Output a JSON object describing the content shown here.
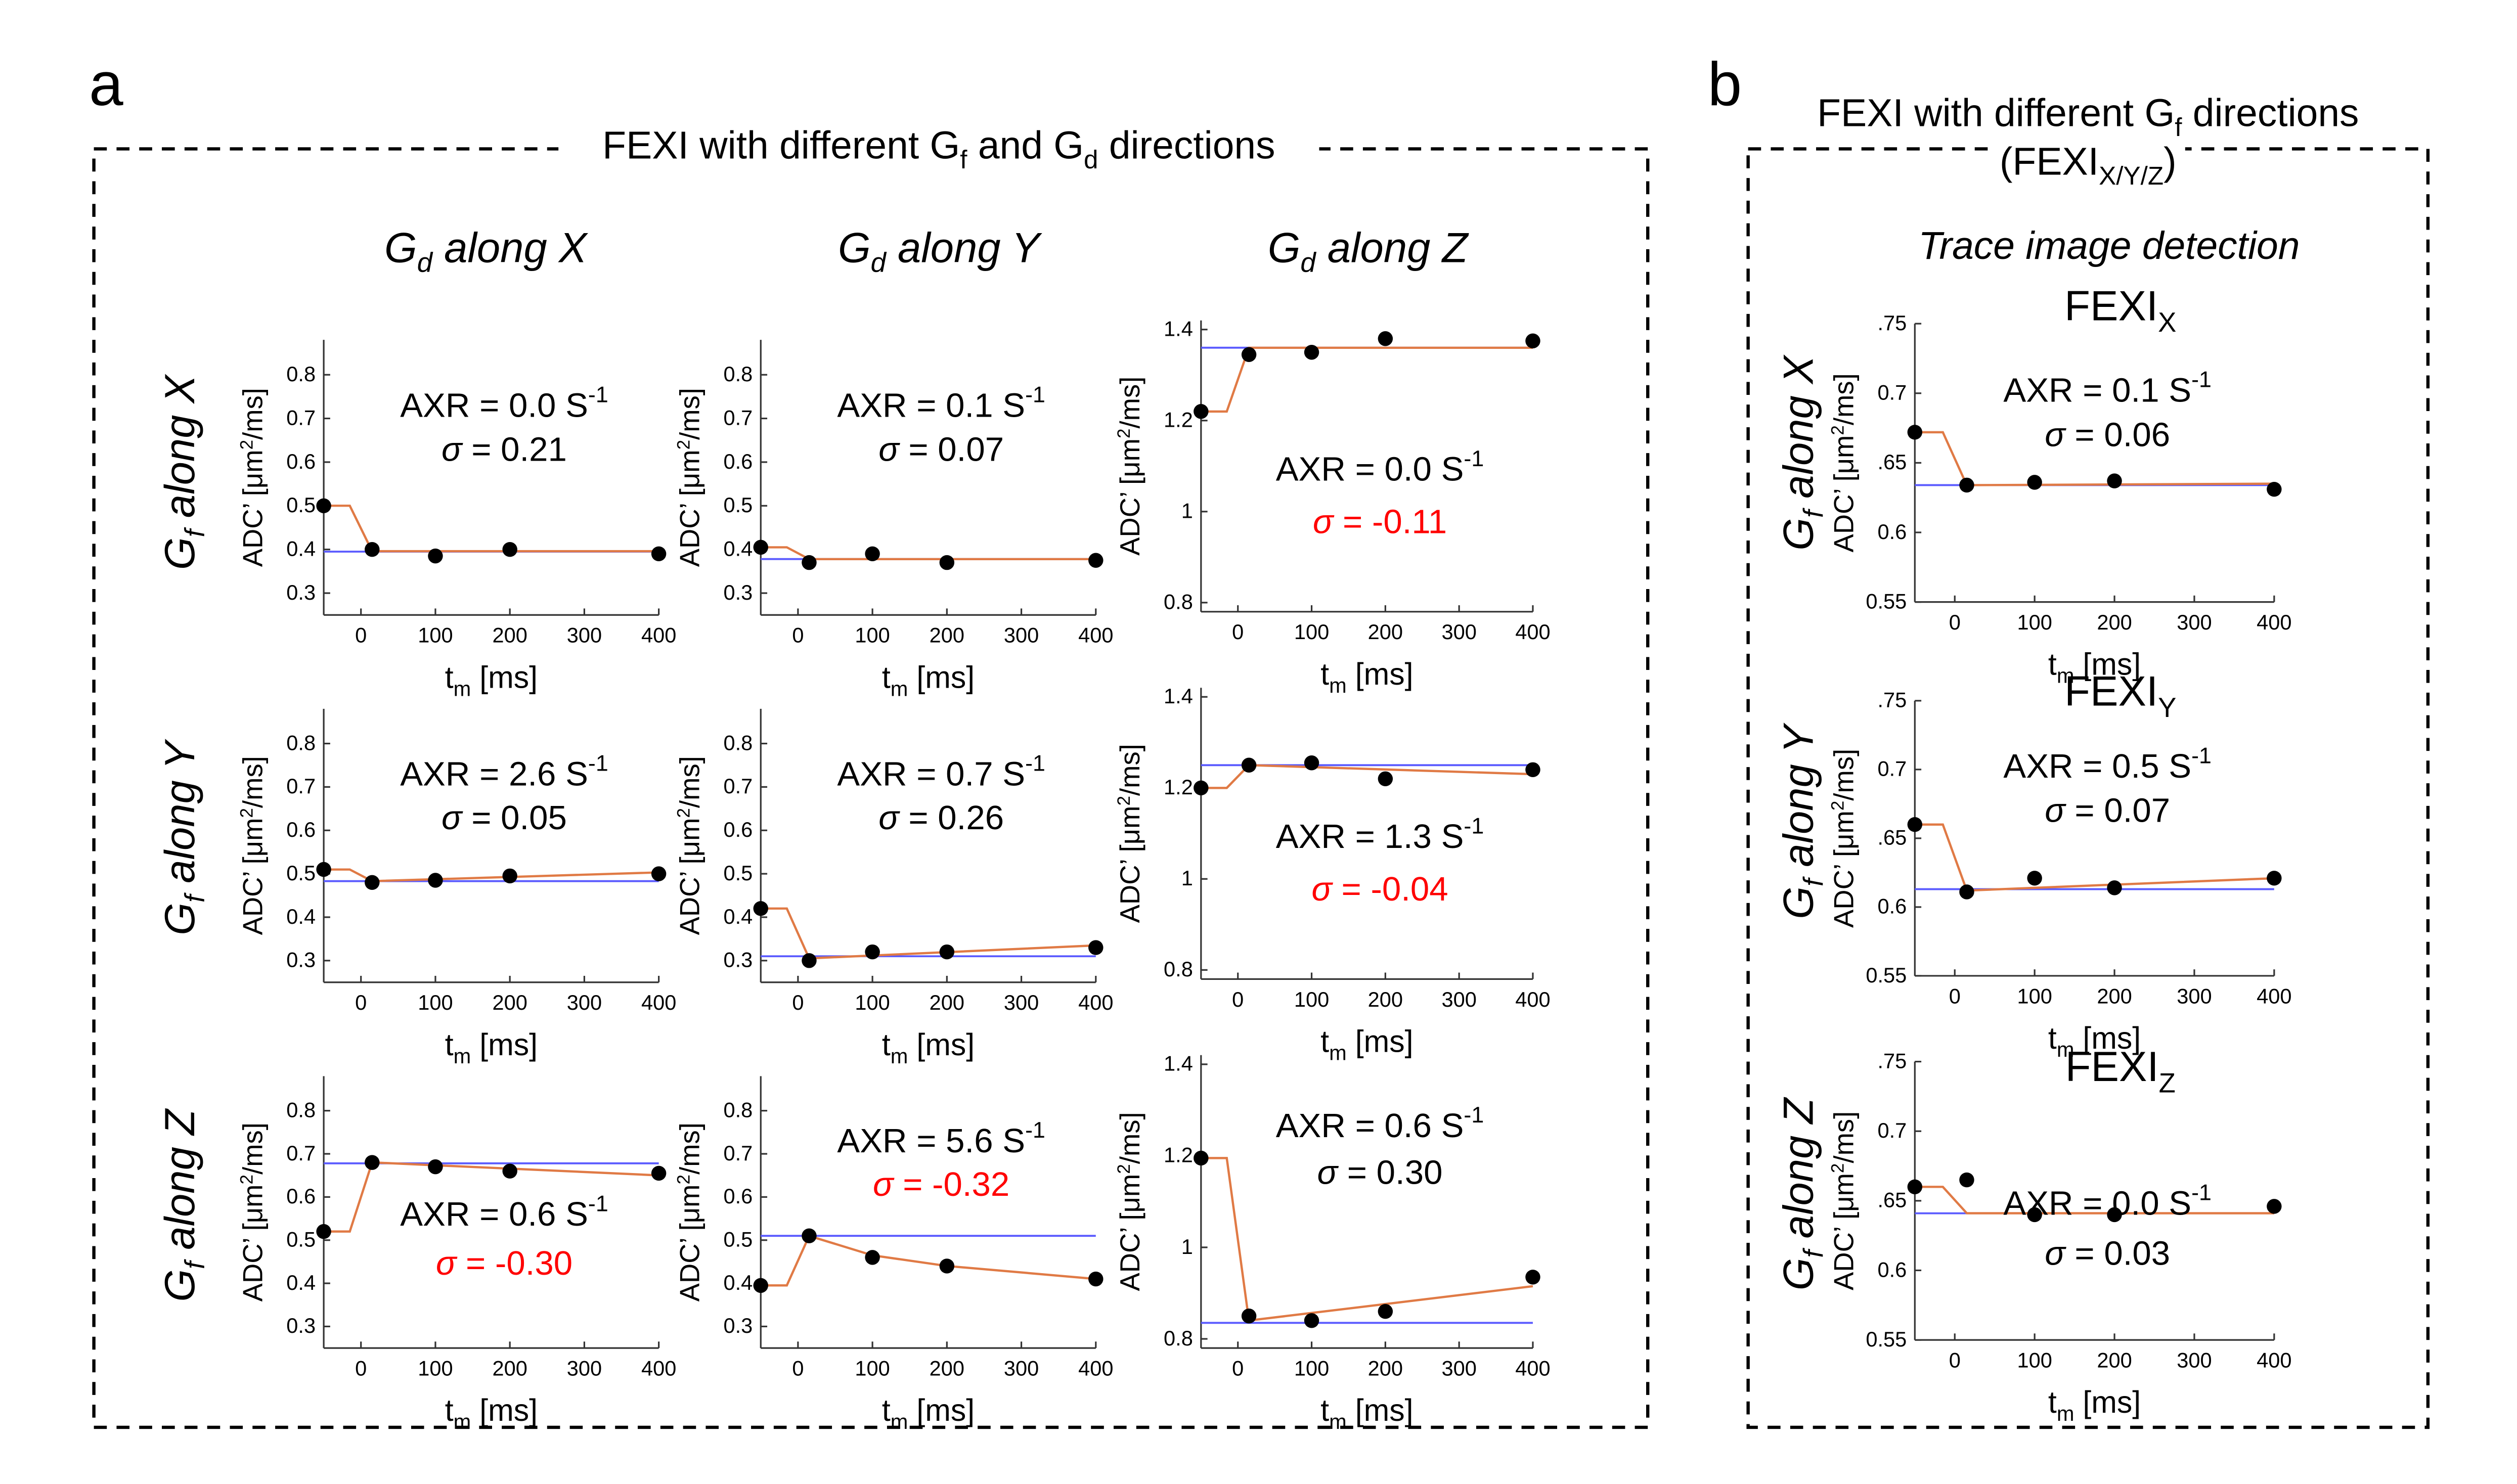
{
  "panel_a": {
    "letter": "a",
    "title_pre": "FEXI with different G",
    "title_sub1": "f",
    "title_mid": " and G",
    "title_sub2": "d",
    "title_post": " directions",
    "col_headers": [
      {
        "g": "G",
        "sub": "d",
        "rest": " along X"
      },
      {
        "g": "G",
        "sub": "d",
        "rest": " along Y"
      },
      {
        "g": "G",
        "sub": "d",
        "rest": " along Z"
      }
    ],
    "row_headers": [
      {
        "g": "G",
        "sub": "f",
        "rest": " along X"
      },
      {
        "g": "G",
        "sub": "f",
        "rest": " along Y"
      },
      {
        "g": "G",
        "sub": "f",
        "rest": " along Z"
      }
    ]
  },
  "panel_b": {
    "letter": "b",
    "title_line1_pre": "FEXI with different G",
    "title_line1_sub": "f",
    "title_line1_post": " directions",
    "title_line2_pre": "(FEXI",
    "title_line2_sub": "X/Y/Z",
    "title_line2_post": ")",
    "subtitle": "Trace image detection",
    "row_headers": [
      {
        "g": "G",
        "sub": "f",
        "rest": " along X"
      },
      {
        "g": "G",
        "sub": "f",
        "rest": " along Y"
      },
      {
        "g": "G",
        "sub": "f",
        "rest": " along Z"
      }
    ]
  },
  "axis_labels": {
    "xlabel_main": "t",
    "xlabel_sub": "m",
    "xlabel_unit": " [ms]",
    "ylabel_pre": "ADC’ [μm",
    "ylabel_sup": "2",
    "ylabel_post": "/ms]"
  },
  "colors": {
    "fit_line": "#e07a45",
    "baseline": "#5a5aff",
    "points": "#000000",
    "highlight_text": "#ff0000",
    "frame": "#000000"
  },
  "chart_data": [
    {
      "id": "a-x-x",
      "type": "scatter",
      "xlim": [
        -50,
        400
      ],
      "ylim": [
        0.25,
        0.88
      ],
      "x_ticks": [
        "0",
        "100",
        "200",
        "300",
        "400"
      ],
      "y_ticks": [
        "0.3",
        "0.4",
        "0.5",
        "0.6",
        "0.7",
        "0.8"
      ],
      "y_tick_values": [
        0.3,
        0.4,
        0.5,
        0.6,
        0.7,
        0.8
      ],
      "points_x": [
        -50,
        15,
        100,
        200,
        400
      ],
      "points_y": [
        0.5,
        0.4,
        0.385,
        0.4,
        0.39
      ],
      "fit_x": [
        -50,
        -15,
        15,
        400
      ],
      "fit_y": [
        0.5,
        0.5,
        0.396,
        0.396
      ],
      "baseline": 0.395,
      "axr": "AXR = 0.0 S",
      "axr_sup": "-1",
      "sigma_label": "σ",
      "sigma_value": " = 0.21",
      "sigma_red": false,
      "label_pos": "upper"
    },
    {
      "id": "a-x-y",
      "type": "scatter",
      "xlim": [
        -50,
        400
      ],
      "ylim": [
        0.25,
        0.88
      ],
      "x_ticks": [
        "0",
        "100",
        "200",
        "300",
        "400"
      ],
      "y_ticks": [
        "0.3",
        "0.4",
        "0.5",
        "0.6",
        "0.7",
        "0.8"
      ],
      "y_tick_values": [
        0.3,
        0.4,
        0.5,
        0.6,
        0.7,
        0.8
      ],
      "points_x": [
        -50,
        15,
        100,
        200,
        400
      ],
      "points_y": [
        0.405,
        0.37,
        0.39,
        0.37,
        0.375
      ],
      "fit_x": [
        -50,
        -15,
        15,
        400
      ],
      "fit_y": [
        0.405,
        0.405,
        0.378,
        0.378
      ],
      "baseline": 0.378,
      "axr": "AXR = 0.1 S",
      "axr_sup": "-1",
      "sigma_label": "σ",
      "sigma_value": " = 0.07",
      "sigma_red": false,
      "label_pos": "upper"
    },
    {
      "id": "a-x-z",
      "type": "scatter",
      "xlim": [
        -50,
        400
      ],
      "ylim": [
        0.78,
        1.42
      ],
      "x_ticks": [
        "0",
        "100",
        "200",
        "300",
        "400"
      ],
      "y_ticks": [
        "0.8",
        "1",
        "1.2",
        "1.4"
      ],
      "y_tick_values": [
        0.8,
        1.0,
        1.2,
        1.4
      ],
      "points_x": [
        -50,
        15,
        100,
        200,
        400
      ],
      "points_y": [
        1.22,
        1.345,
        1.35,
        1.38,
        1.375
      ],
      "fit_x": [
        -50,
        -15,
        15,
        400
      ],
      "fit_y": [
        1.22,
        1.22,
        1.36,
        1.36
      ],
      "baseline": 1.36,
      "axr": "AXR = 0.0 S",
      "axr_sup": "-1",
      "sigma_label": "σ",
      "sigma_value": " = -0.11",
      "sigma_red": true,
      "label_pos": "lower"
    },
    {
      "id": "a-y-x",
      "type": "scatter",
      "xlim": [
        -50,
        400
      ],
      "ylim": [
        0.25,
        0.88
      ],
      "x_ticks": [
        "0",
        "100",
        "200",
        "300",
        "400"
      ],
      "y_ticks": [
        "0.3",
        "0.4",
        "0.5",
        "0.6",
        "0.7",
        "0.8"
      ],
      "y_tick_values": [
        0.3,
        0.4,
        0.5,
        0.6,
        0.7,
        0.8
      ],
      "points_x": [
        -50,
        15,
        100,
        200,
        400
      ],
      "points_y": [
        0.51,
        0.48,
        0.485,
        0.495,
        0.5
      ],
      "fit_x": [
        -50,
        -15,
        15,
        400
      ],
      "fit_y": [
        0.51,
        0.51,
        0.483,
        0.503
      ],
      "baseline": 0.483,
      "axr": "AXR = 2.6 S",
      "axr_sup": "-1",
      "sigma_label": "σ",
      "sigma_value": " = 0.05",
      "sigma_red": false,
      "label_pos": "upper"
    },
    {
      "id": "a-y-y",
      "type": "scatter",
      "xlim": [
        -50,
        400
      ],
      "ylim": [
        0.25,
        0.88
      ],
      "x_ticks": [
        "0",
        "100",
        "200",
        "300",
        "400"
      ],
      "y_ticks": [
        "0.3",
        "0.4",
        "0.5",
        "0.6",
        "0.7",
        "0.8"
      ],
      "y_tick_values": [
        0.3,
        0.4,
        0.5,
        0.6,
        0.7,
        0.8
      ],
      "points_x": [
        -50,
        15,
        100,
        200,
        400
      ],
      "points_y": [
        0.42,
        0.3,
        0.32,
        0.32,
        0.33
      ],
      "fit_x": [
        -50,
        -15,
        15,
        400
      ],
      "fit_y": [
        0.42,
        0.42,
        0.305,
        0.335
      ],
      "baseline": 0.31,
      "axr": "AXR = 0.7 S",
      "axr_sup": "-1",
      "sigma_label": "σ",
      "sigma_value": " = 0.26",
      "sigma_red": false,
      "label_pos": "upper"
    },
    {
      "id": "a-y-z",
      "type": "scatter",
      "xlim": [
        -50,
        400
      ],
      "ylim": [
        0.78,
        1.42
      ],
      "x_ticks": [
        "0",
        "100",
        "200",
        "300",
        "400"
      ],
      "y_ticks": [
        "0.8",
        "1",
        "1.2",
        "1.4"
      ],
      "y_tick_values": [
        0.8,
        1.0,
        1.2,
        1.4
      ],
      "points_x": [
        -50,
        15,
        100,
        200,
        400
      ],
      "points_y": [
        1.2,
        1.25,
        1.255,
        1.22,
        1.24
      ],
      "fit_x": [
        -50,
        -15,
        15,
        400
      ],
      "fit_y": [
        1.2,
        1.2,
        1.25,
        1.23
      ],
      "baseline": 1.25,
      "axr": "AXR = 1.3 S",
      "axr_sup": "-1",
      "sigma_label": "σ",
      "sigma_value": " = -0.04",
      "sigma_red": true,
      "label_pos": "lower"
    },
    {
      "id": "a-z-x",
      "type": "scatter",
      "xlim": [
        -50,
        400
      ],
      "ylim": [
        0.25,
        0.88
      ],
      "x_ticks": [
        "0",
        "100",
        "200",
        "300",
        "400"
      ],
      "y_ticks": [
        "0.3",
        "0.4",
        "0.5",
        "0.6",
        "0.7",
        "0.8"
      ],
      "y_tick_values": [
        0.3,
        0.4,
        0.5,
        0.6,
        0.7,
        0.8
      ],
      "points_x": [
        -50,
        15,
        100,
        200,
        400
      ],
      "points_y": [
        0.52,
        0.68,
        0.67,
        0.66,
        0.655
      ],
      "fit_x": [
        -50,
        -15,
        15,
        400
      ],
      "fit_y": [
        0.52,
        0.52,
        0.68,
        0.65
      ],
      "baseline": 0.678,
      "axr": "AXR = 0.6 S",
      "axr_sup": "-1",
      "sigma_label": "σ",
      "sigma_value": " = -0.30",
      "sigma_red": true,
      "label_pos": "lower"
    },
    {
      "id": "a-z-y",
      "type": "scatter",
      "xlim": [
        -50,
        400
      ],
      "ylim": [
        0.25,
        0.88
      ],
      "x_ticks": [
        "0",
        "100",
        "200",
        "300",
        "400"
      ],
      "y_ticks": [
        "0.3",
        "0.4",
        "0.5",
        "0.6",
        "0.7",
        "0.8"
      ],
      "y_tick_values": [
        0.3,
        0.4,
        0.5,
        0.6,
        0.7,
        0.8
      ],
      "points_x": [
        -50,
        15,
        100,
        200,
        400
      ],
      "points_y": [
        0.395,
        0.51,
        0.46,
        0.44,
        0.41
      ],
      "fit_x": [
        -50,
        -15,
        15,
        100,
        200,
        400
      ],
      "fit_y": [
        0.395,
        0.395,
        0.51,
        0.465,
        0.44,
        0.41
      ],
      "baseline": 0.51,
      "axr": "AXR = 5.6 S",
      "axr_sup": "-1",
      "sigma_label": "σ",
      "sigma_value": " = -0.32",
      "sigma_red": true,
      "label_pos": "upper"
    },
    {
      "id": "a-z-z",
      "type": "scatter",
      "xlim": [
        -50,
        400
      ],
      "ylim": [
        0.78,
        1.42
      ],
      "x_ticks": [
        "0",
        "100",
        "200",
        "300",
        "400"
      ],
      "y_ticks": [
        "0.8",
        "1",
        "1.2",
        "1.4"
      ],
      "y_tick_values": [
        0.8,
        1.0,
        1.2,
        1.4
      ],
      "points_x": [
        -50,
        15,
        100,
        200,
        400
      ],
      "points_y": [
        1.195,
        0.85,
        0.84,
        0.86,
        0.935
      ],
      "fit_x": [
        -50,
        -15,
        15,
        400
      ],
      "fit_y": [
        1.195,
        1.195,
        0.84,
        0.915
      ],
      "baseline": 0.835,
      "axr": "AXR = 0.6 S",
      "axr_sup": "-1",
      "sigma_label": "σ",
      "sigma_value": " = 0.30",
      "sigma_red": false,
      "label_pos": "upper"
    },
    {
      "id": "b-x",
      "type": "scatter",
      "title": "FEXI",
      "title_sub": "X",
      "xlim": [
        -50,
        400
      ],
      "ylim": [
        0.55,
        0.75
      ],
      "x_ticks": [
        "0",
        "100",
        "200",
        "300",
        "400"
      ],
      "y_ticks": [
        "0.55",
        "0.6",
        ".65",
        "0.7",
        ".75"
      ],
      "y_tick_values": [
        0.55,
        0.6,
        0.65,
        0.7,
        0.75
      ],
      "points_x": [
        -50,
        15,
        100,
        200,
        400
      ],
      "points_y": [
        0.672,
        0.634,
        0.636,
        0.637,
        0.631
      ],
      "fit_x": [
        -50,
        -15,
        15,
        400
      ],
      "fit_y": [
        0.672,
        0.672,
        0.634,
        0.635
      ],
      "baseline": 0.634,
      "axr": "AXR = 0.1 S",
      "axr_sup": "-1",
      "sigma_label": "σ",
      "sigma_value": " = 0.06",
      "sigma_red": false,
      "label_pos": "upper"
    },
    {
      "id": "b-y",
      "type": "scatter",
      "title": "FEXI",
      "title_sub": "Y",
      "xlim": [
        -50,
        400
      ],
      "ylim": [
        0.55,
        0.75
      ],
      "x_ticks": [
        "0",
        "100",
        "200",
        "300",
        "400"
      ],
      "y_ticks": [
        "0.55",
        "0.6",
        ".65",
        "0.7",
        ".75"
      ],
      "y_tick_values": [
        0.55,
        0.6,
        0.65,
        0.7,
        0.75
      ],
      "points_x": [
        -50,
        15,
        100,
        200,
        400
      ],
      "points_y": [
        0.66,
        0.611,
        0.621,
        0.614,
        0.621
      ],
      "fit_x": [
        -50,
        -15,
        15,
        400
      ],
      "fit_y": [
        0.66,
        0.66,
        0.612,
        0.621
      ],
      "baseline": 0.613,
      "axr": "AXR = 0.5 S",
      "axr_sup": "-1",
      "sigma_label": "σ",
      "sigma_value": " = 0.07",
      "sigma_red": false,
      "label_pos": "upper"
    },
    {
      "id": "b-z",
      "type": "scatter",
      "title": "FEXI",
      "title_sub": "Z",
      "xlim": [
        -50,
        400
      ],
      "ylim": [
        0.55,
        0.75
      ],
      "x_ticks": [
        "0",
        "100",
        "200",
        "300",
        "400"
      ],
      "y_ticks": [
        "0.55",
        "0.6",
        ".65",
        "0.7",
        ".75"
      ],
      "y_tick_values": [
        0.55,
        0.6,
        0.65,
        0.7,
        0.75
      ],
      "points_x": [
        -50,
        15,
        100,
        200,
        400
      ],
      "points_y": [
        0.66,
        0.665,
        0.64,
        0.64,
        0.646
      ],
      "fit_x": [
        -50,
        -15,
        15,
        400
      ],
      "fit_y": [
        0.66,
        0.66,
        0.641,
        0.641
      ],
      "baseline": 0.641,
      "axr": "AXR = 0.0 S",
      "axr_sup": "-1",
      "sigma_label": "σ",
      "sigma_value": " = 0.03",
      "sigma_red": false,
      "label_pos": "lower"
    }
  ]
}
